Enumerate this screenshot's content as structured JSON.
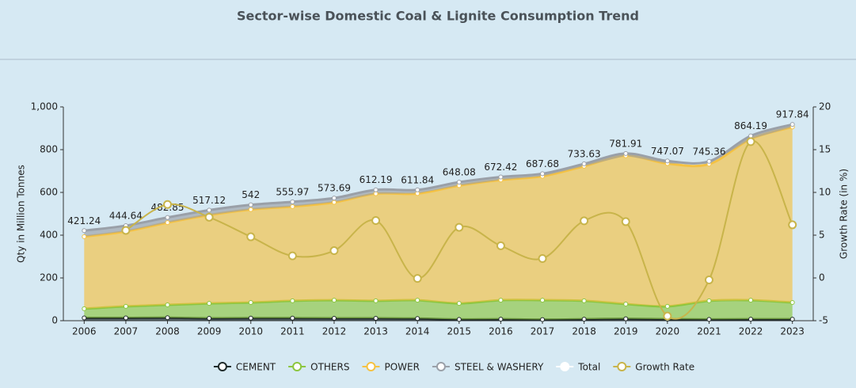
{
  "chart_data": {
    "type": "stacked-area",
    "title": "Sector-wise Domestic Coal & Lignite Consumption Trend",
    "y_label": "Qty in Million Tonnes",
    "y2_label": "Growth Rate (in %)",
    "categories": [
      "2006",
      "2007",
      "2008",
      "2009",
      "2010",
      "2011",
      "2012",
      "2013",
      "2014",
      "2015",
      "2016",
      "2017",
      "2018",
      "2019",
      "2020",
      "2021",
      "2022",
      "2023"
    ],
    "ylim": [
      0,
      1000
    ],
    "yticks": [
      0,
      200,
      400,
      600,
      800,
      {
        "value": 1000,
        "label": "1,000"
      }
    ],
    "y2lim": [
      -5,
      20
    ],
    "y2ticks": [
      -5,
      0,
      5,
      10,
      15,
      20
    ],
    "series": [
      {
        "name": "CEMENT",
        "type": "area",
        "color": "#1f2a2a",
        "values": [
          13,
          13,
          14,
          11,
          12,
          12,
          11,
          11,
          10,
          6,
          7,
          5,
          7,
          9,
          7,
          6,
          7,
          7
        ]
      },
      {
        "name": "OTHERS",
        "type": "area",
        "color": "#8cc63f",
        "values": [
          43,
          54,
          60,
          70,
          73,
          81,
          85,
          82,
          86,
          75,
          89,
          91,
          86,
          69,
          60,
          87,
          89,
          78
        ]
      },
      {
        "name": "POWER",
        "type": "area",
        "color": "#f5c242",
        "values": [
          337.24,
          350.64,
          384.85,
          413.12,
          435,
          440.97,
          457.69,
          501.19,
          498.84,
          551.08,
          562.42,
          579.68,
          629.63,
          693.91,
          668.07,
          639.36,
          754.19,
          820.84
        ]
      },
      {
        "name": "STEEL & WASHERY",
        "type": "area",
        "color": "#9aa0a8",
        "values": [
          28,
          27,
          24,
          23,
          22,
          22,
          20,
          18,
          17,
          16,
          14,
          12,
          11,
          10,
          12,
          13,
          14,
          12
        ]
      },
      {
        "name": "Total",
        "type": "line",
        "color": "#ffffff",
        "values": [
          421.24,
          444.64,
          482.85,
          517.12,
          542,
          555.97,
          573.69,
          612.19,
          611.84,
          648.08,
          672.42,
          687.68,
          733.63,
          781.91,
          747.07,
          745.36,
          864.19,
          917.84
        ]
      },
      {
        "name": "Growth Rate",
        "type": "line",
        "axis": "y2",
        "color": "#c8b44a",
        "values": [
          null,
          5.56,
          8.59,
          7.1,
          4.81,
          2.58,
          3.19,
          6.71,
          -0.06,
          5.92,
          3.76,
          2.27,
          6.68,
          6.58,
          -4.46,
          -0.23,
          15.94,
          6.21
        ]
      }
    ]
  }
}
